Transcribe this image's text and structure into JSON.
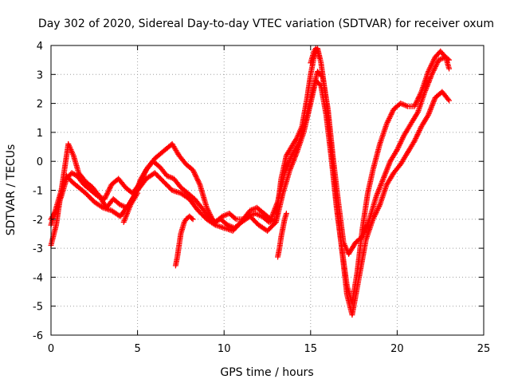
{
  "chart_data": {
    "type": "scatter",
    "title": "Day 302 of 2020, Sidereal Day-to-day VTEC variation (SDTVAR) for receiver oxum",
    "xlabel": "GPS time / hours",
    "ylabel": "SDTVAR / TECUs",
    "xlim": [
      0,
      25
    ],
    "ylim": [
      -6,
      4
    ],
    "xticks": [
      "0",
      "5",
      "10",
      "15",
      "20",
      "25"
    ],
    "yticks": [
      "-6",
      "-5",
      "-4",
      "-3",
      "-2",
      "-1",
      "0",
      "1",
      "2",
      "3",
      "4"
    ],
    "grid": true,
    "marker": "+",
    "color": "#ff0000",
    "series": [
      {
        "x": [
          0.0,
          0.3,
          0.6,
          0.9,
          1.0,
          1.3,
          1.6,
          2.0,
          2.4,
          2.8,
          3.2,
          3.6,
          4.0,
          4.4,
          4.8,
          5.2,
          5.6,
          6.0,
          6.4,
          6.8,
          7.0,
          7.4,
          7.8,
          8.2,
          8.6,
          9.0,
          9.4,
          9.8,
          10.2,
          10.6,
          11.0,
          11.4,
          11.8,
          12.2,
          12.6,
          13.0,
          13.3,
          13.6,
          13.9,
          14.2,
          14.5,
          14.8,
          15.0,
          15.2,
          15.4,
          15.6,
          15.9,
          16.2,
          16.5,
          16.8,
          17.1,
          17.4,
          17.7,
          18.0,
          18.3,
          18.6,
          19.0,
          19.4,
          19.8,
          20.2,
          20.6,
          21.0,
          21.4,
          21.8,
          22.2,
          22.5,
          22.8,
          23.0
        ],
        "y": [
          -2.9,
          -2.2,
          -1.0,
          0.2,
          0.6,
          0.2,
          -0.4,
          -0.7,
          -0.9,
          -1.2,
          -1.6,
          -1.3,
          -1.5,
          -1.6,
          -1.2,
          -0.6,
          -0.2,
          0.1,
          0.3,
          0.5,
          0.6,
          0.2,
          -0.1,
          -0.3,
          -0.8,
          -1.6,
          -2.1,
          -2.0,
          -2.2,
          -2.3,
          -2.1,
          -1.9,
          -1.8,
          -1.9,
          -2.1,
          -2.0,
          -0.6,
          0.2,
          0.5,
          0.8,
          1.2,
          2.2,
          3.0,
          3.6,
          3.9,
          3.4,
          2.1,
          0.4,
          -1.4,
          -3.0,
          -4.3,
          -4.9,
          -3.8,
          -2.3,
          -1.1,
          -0.3,
          0.6,
          1.3,
          1.8,
          2.0,
          1.9,
          1.9,
          2.4,
          3.1,
          3.6,
          3.8,
          3.6,
          3.2
        ]
      },
      {
        "x": [
          0.0,
          0.3,
          0.6,
          0.9,
          1.2,
          1.6,
          2.0,
          2.5,
          3.0,
          3.5,
          4.0,
          4.5,
          5.0,
          5.5,
          6.0,
          6.5,
          7.0,
          7.5,
          8.0,
          8.5,
          9.0,
          9.5,
          10.0,
          10.5,
          11.0,
          11.5,
          12.0,
          12.5,
          13.0,
          13.4,
          13.8,
          14.2,
          14.6,
          15.0,
          15.3,
          15.6,
          15.9,
          16.2,
          16.5,
          16.8,
          17.1,
          17.4,
          17.8,
          18.2,
          18.6,
          19.0,
          19.4,
          19.8,
          20.2,
          20.6,
          21.0,
          21.4,
          21.8,
          22.2,
          22.6,
          23.0
        ],
        "y": [
          -2.2,
          -1.6,
          -1.0,
          -0.5,
          -0.7,
          -0.9,
          -1.1,
          -1.4,
          -1.6,
          -1.7,
          -1.9,
          -1.5,
          -1.0,
          -0.6,
          -0.4,
          -0.7,
          -1.0,
          -1.1,
          -1.3,
          -1.7,
          -2.0,
          -2.2,
          -2.3,
          -2.4,
          -2.1,
          -1.9,
          -2.2,
          -2.4,
          -2.1,
          -1.1,
          -0.3,
          0.3,
          1.0,
          2.0,
          2.8,
          2.6,
          1.6,
          0.1,
          -1.6,
          -3.0,
          -4.6,
          -5.3,
          -4.0,
          -2.7,
          -2.0,
          -1.5,
          -0.8,
          -0.4,
          -0.1,
          0.3,
          0.7,
          1.2,
          1.6,
          2.2,
          2.4,
          2.1
        ]
      },
      {
        "x": [
          0.0,
          0.3,
          0.6,
          0.9,
          1.2,
          1.5,
          1.9,
          2.3,
          2.7,
          3.1,
          3.5,
          3.9,
          4.3,
          4.7,
          5.1,
          5.5,
          5.9,
          6.3,
          6.7,
          7.1,
          7.5,
          7.9,
          8.3,
          8.7,
          9.1,
          9.5,
          9.9,
          10.3,
          10.7,
          11.1,
          11.5,
          11.9,
          12.3,
          12.7,
          13.1,
          13.5,
          13.9,
          14.3,
          14.7,
          15.1,
          15.4,
          15.7,
          16.0,
          16.3,
          16.6,
          16.9,
          17.2,
          17.6,
          18.0,
          18.4,
          18.8,
          19.2,
          19.6,
          20.0,
          20.4,
          20.8,
          21.2,
          21.6,
          22.0,
          22.4,
          22.8,
          23.0
        ],
        "y": [
          -2.0,
          -1.7,
          -1.2,
          -0.6,
          -0.4,
          -0.5,
          -0.8,
          -1.0,
          -1.2,
          -1.3,
          -0.8,
          -0.6,
          -0.9,
          -1.1,
          -0.8,
          -0.3,
          0.0,
          -0.2,
          -0.5,
          -0.6,
          -0.9,
          -1.1,
          -1.3,
          -1.6,
          -1.9,
          -2.1,
          -1.9,
          -1.8,
          -2.0,
          -2.0,
          -1.7,
          -1.6,
          -1.8,
          -2.0,
          -1.4,
          -0.4,
          0.2,
          0.6,
          1.4,
          2.4,
          3.1,
          2.9,
          1.8,
          0.1,
          -1.4,
          -2.8,
          -3.2,
          -2.8,
          -2.6,
          -2.0,
          -1.2,
          -0.6,
          0.0,
          0.4,
          0.9,
          1.3,
          1.7,
          2.4,
          3.0,
          3.5,
          3.6,
          3.5
        ]
      }
    ],
    "fragments": [
      {
        "x": [
          7.2,
          7.3,
          7.4,
          7.5,
          7.6,
          7.7,
          7.8,
          8.0,
          8.2
        ],
        "y": [
          -3.6,
          -3.3,
          -2.9,
          -2.5,
          -2.3,
          -2.1,
          -2.0,
          -1.9,
          -2.0
        ]
      },
      {
        "x": [
          13.1,
          13.2,
          13.3,
          13.4,
          13.5,
          13.6
        ],
        "y": [
          -3.3,
          -3.0,
          -2.6,
          -2.3,
          -2.0,
          -1.8
        ]
      },
      {
        "x": [
          15.0,
          15.1,
          15.2,
          15.3,
          15.4,
          15.5
        ],
        "y": [
          3.4,
          3.6,
          3.8,
          3.9,
          3.8,
          3.6
        ]
      },
      {
        "x": [
          4.2,
          4.4,
          4.6,
          4.8,
          5.0
        ],
        "y": [
          -2.1,
          -1.8,
          -1.5,
          -1.3,
          -1.1
        ]
      }
    ]
  }
}
